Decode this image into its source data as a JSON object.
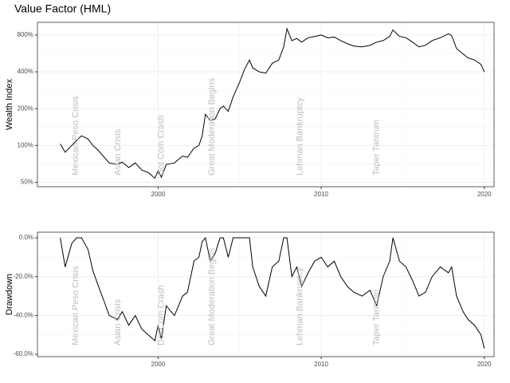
{
  "chart_data": [
    {
      "type": "line",
      "title": "Value Factor (HML)",
      "ylabel": "Wealth Index",
      "log_scale": true,
      "grid": true,
      "color": "#000000",
      "xlim": [
        1992.6,
        2020.6
      ],
      "xticks": [
        2000,
        2010,
        2020
      ],
      "ylim": [
        46,
        1016
      ],
      "yticks": [
        {
          "value": 50,
          "label": "50%"
        },
        {
          "value": 100,
          "label": "100%"
        },
        {
          "value": 200,
          "label": "200%"
        },
        {
          "value": 400,
          "label": "400%"
        },
        {
          "value": 800,
          "label": "800%"
        }
      ],
      "annotations": [
        {
          "text": "Mexican Peso Crisis",
          "x": 1994.95
        },
        {
          "text": "Asian Crisis",
          "x": 1997.55
        },
        {
          "text": "Dot Com Crash",
          "x": 2000.2
        },
        {
          "text": "Great Moderation Begins",
          "x": 2003.3
        },
        {
          "text": "Lehman Bankruptcy",
          "x": 2008.7
        },
        {
          "text": "Taper Tantrum",
          "x": 2013.4
        }
      ],
      "x": [
        1994.0,
        1994.3,
        1994.7,
        1995.0,
        1995.3,
        1995.7,
        1996.0,
        1996.3,
        1996.7,
        1997.0,
        1997.5,
        1997.8,
        1998.2,
        1998.6,
        1999.0,
        1999.4,
        1999.8,
        2000.0,
        2000.2,
        2000.5,
        2001.0,
        2001.5,
        2001.8,
        2002.2,
        2002.5,
        2002.7,
        2002.9,
        2003.2,
        2003.5,
        2003.8,
        2004.0,
        2004.3,
        2004.6,
        2005.0,
        2005.3,
        2005.6,
        2005.8,
        2006.2,
        2006.6,
        2007.0,
        2007.4,
        2007.7,
        2007.9,
        2008.2,
        2008.5,
        2008.8,
        2009.2,
        2009.6,
        2010.0,
        2010.4,
        2010.8,
        2011.2,
        2011.6,
        2012.0,
        2012.5,
        2013.0,
        2013.4,
        2013.8,
        2014.2,
        2014.4,
        2014.8,
        2015.2,
        2015.6,
        2016.0,
        2016.4,
        2016.8,
        2017.3,
        2017.8,
        2018.0,
        2018.3,
        2018.7,
        2019.0,
        2019.4,
        2019.8,
        2020.0
      ],
      "values": [
        103,
        88,
        100,
        110,
        120,
        113,
        100,
        92,
        80,
        72,
        70,
        73,
        66,
        72,
        63,
        60,
        54,
        62,
        55,
        70,
        72,
        82,
        80,
        95,
        100,
        120,
        180,
        160,
        165,
        200,
        210,
        190,
        250,
        330,
        420,
        500,
        430,
        400,
        390,
        470,
        500,
        640,
        900,
        720,
        750,
        700,
        760,
        780,
        800,
        760,
        770,
        720,
        680,
        650,
        640,
        660,
        700,
        720,
        780,
        880,
        780,
        760,
        700,
        640,
        660,
        720,
        760,
        820,
        790,
        620,
        560,
        520,
        500,
        460,
        400
      ]
    },
    {
      "type": "line",
      "ylabel": "Drawdown",
      "log_scale": false,
      "grid": true,
      "color": "#000000",
      "xlim": [
        1992.6,
        2020.6
      ],
      "xticks": [
        2000,
        2010,
        2020
      ],
      "ylim": [
        -61.2,
        2.9
      ],
      "yticks": [
        {
          "value": -60,
          "label": "-60.0%"
        },
        {
          "value": -40,
          "label": "-40.0%"
        },
        {
          "value": -20,
          "label": "-20.0%"
        },
        {
          "value": 0,
          "label": "0.0%"
        }
      ],
      "annotations": [
        {
          "text": "Mexican Peso Crisis",
          "x": 1994.95
        },
        {
          "text": "Asian Crisis",
          "x": 1997.55
        },
        {
          "text": "Dot Com Crash",
          "x": 2000.2
        },
        {
          "text": "Great Moderation Begins",
          "x": 2003.3
        },
        {
          "text": "Lehman Bankruptcy",
          "x": 2008.7
        },
        {
          "text": "Taper Tantrum",
          "x": 2013.4
        }
      ],
      "x": [
        1994.0,
        1994.3,
        1994.7,
        1995.0,
        1995.3,
        1995.7,
        1996.0,
        1996.3,
        1996.7,
        1997.0,
        1997.5,
        1997.8,
        1998.2,
        1998.6,
        1999.0,
        1999.4,
        1999.8,
        2000.0,
        2000.2,
        2000.5,
        2001.0,
        2001.5,
        2001.8,
        2002.2,
        2002.5,
        2002.7,
        2002.9,
        2003.2,
        2003.5,
        2003.8,
        2004.0,
        2004.3,
        2004.6,
        2005.0,
        2005.3,
        2005.6,
        2005.8,
        2006.2,
        2006.6,
        2007.0,
        2007.4,
        2007.7,
        2007.9,
        2008.2,
        2008.5,
        2008.8,
        2009.2,
        2009.6,
        2010.0,
        2010.4,
        2010.8,
        2011.2,
        2011.6,
        2012.0,
        2012.5,
        2013.0,
        2013.4,
        2013.8,
        2014.2,
        2014.4,
        2014.8,
        2015.2,
        2015.6,
        2016.0,
        2016.4,
        2016.8,
        2017.3,
        2017.8,
        2018.0,
        2018.3,
        2018.7,
        2019.0,
        2019.4,
        2019.8,
        2020.0
      ],
      "values": [
        0,
        -15,
        -3,
        0,
        0,
        -6,
        -17,
        -24,
        -33,
        -40,
        -42,
        -38,
        -45,
        -40,
        -47,
        -50,
        -53,
        -45,
        -52,
        -35,
        -40,
        -30,
        -28,
        -12,
        -10,
        -2,
        0,
        -12,
        -8,
        0,
        0,
        -10,
        0,
        0,
        0,
        0,
        -15,
        -25,
        -30,
        -15,
        -12,
        0,
        0,
        -20,
        -15,
        -25,
        -18,
        -12,
        -10,
        -15,
        -12,
        -20,
        -25,
        -28,
        -30,
        -27,
        -35,
        -20,
        -12,
        0,
        -12,
        -15,
        -22,
        -30,
        -28,
        -20,
        -15,
        -18,
        -15,
        -30,
        -38,
        -42,
        -45,
        -50,
        -57
      ]
    }
  ]
}
